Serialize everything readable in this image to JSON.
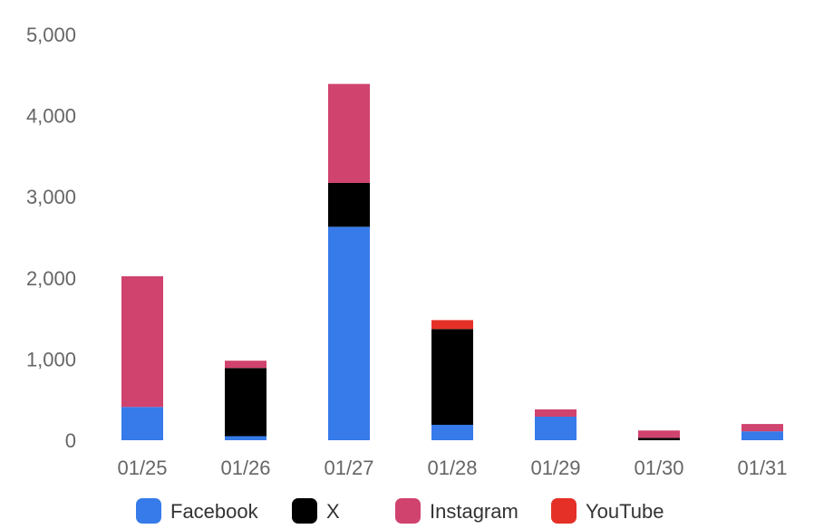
{
  "chart_data": {
    "type": "bar",
    "stacked": true,
    "categories": [
      "01/25",
      "01/26",
      "01/27",
      "01/28",
      "01/29",
      "01/30",
      "01/31"
    ],
    "series": [
      {
        "name": "Facebook",
        "color": "#367BE9",
        "values": [
          410,
          50,
          2630,
          190,
          290,
          0,
          110
        ]
      },
      {
        "name": "X",
        "color": "#000000",
        "values": [
          0,
          840,
          540,
          1180,
          0,
          30,
          0
        ]
      },
      {
        "name": "Instagram",
        "color": "#D0436E",
        "values": [
          1610,
          90,
          1220,
          0,
          90,
          90,
          90
        ]
      },
      {
        "name": "YouTube",
        "color": "#E53027",
        "values": [
          0,
          0,
          0,
          110,
          0,
          0,
          0
        ]
      }
    ],
    "ylim": [
      0,
      5000
    ],
    "yticks": [
      {
        "value": 0,
        "label": "0"
      },
      {
        "value": 1000,
        "label": "1,000"
      },
      {
        "value": 2000,
        "label": "2,000"
      },
      {
        "value": 3000,
        "label": "3,000"
      },
      {
        "value": 4000,
        "label": "4,000"
      },
      {
        "value": 5000,
        "label": "5,000"
      }
    ],
    "grid": false,
    "legend": "bottom",
    "title": "",
    "xlabel": "",
    "ylabel": ""
  }
}
